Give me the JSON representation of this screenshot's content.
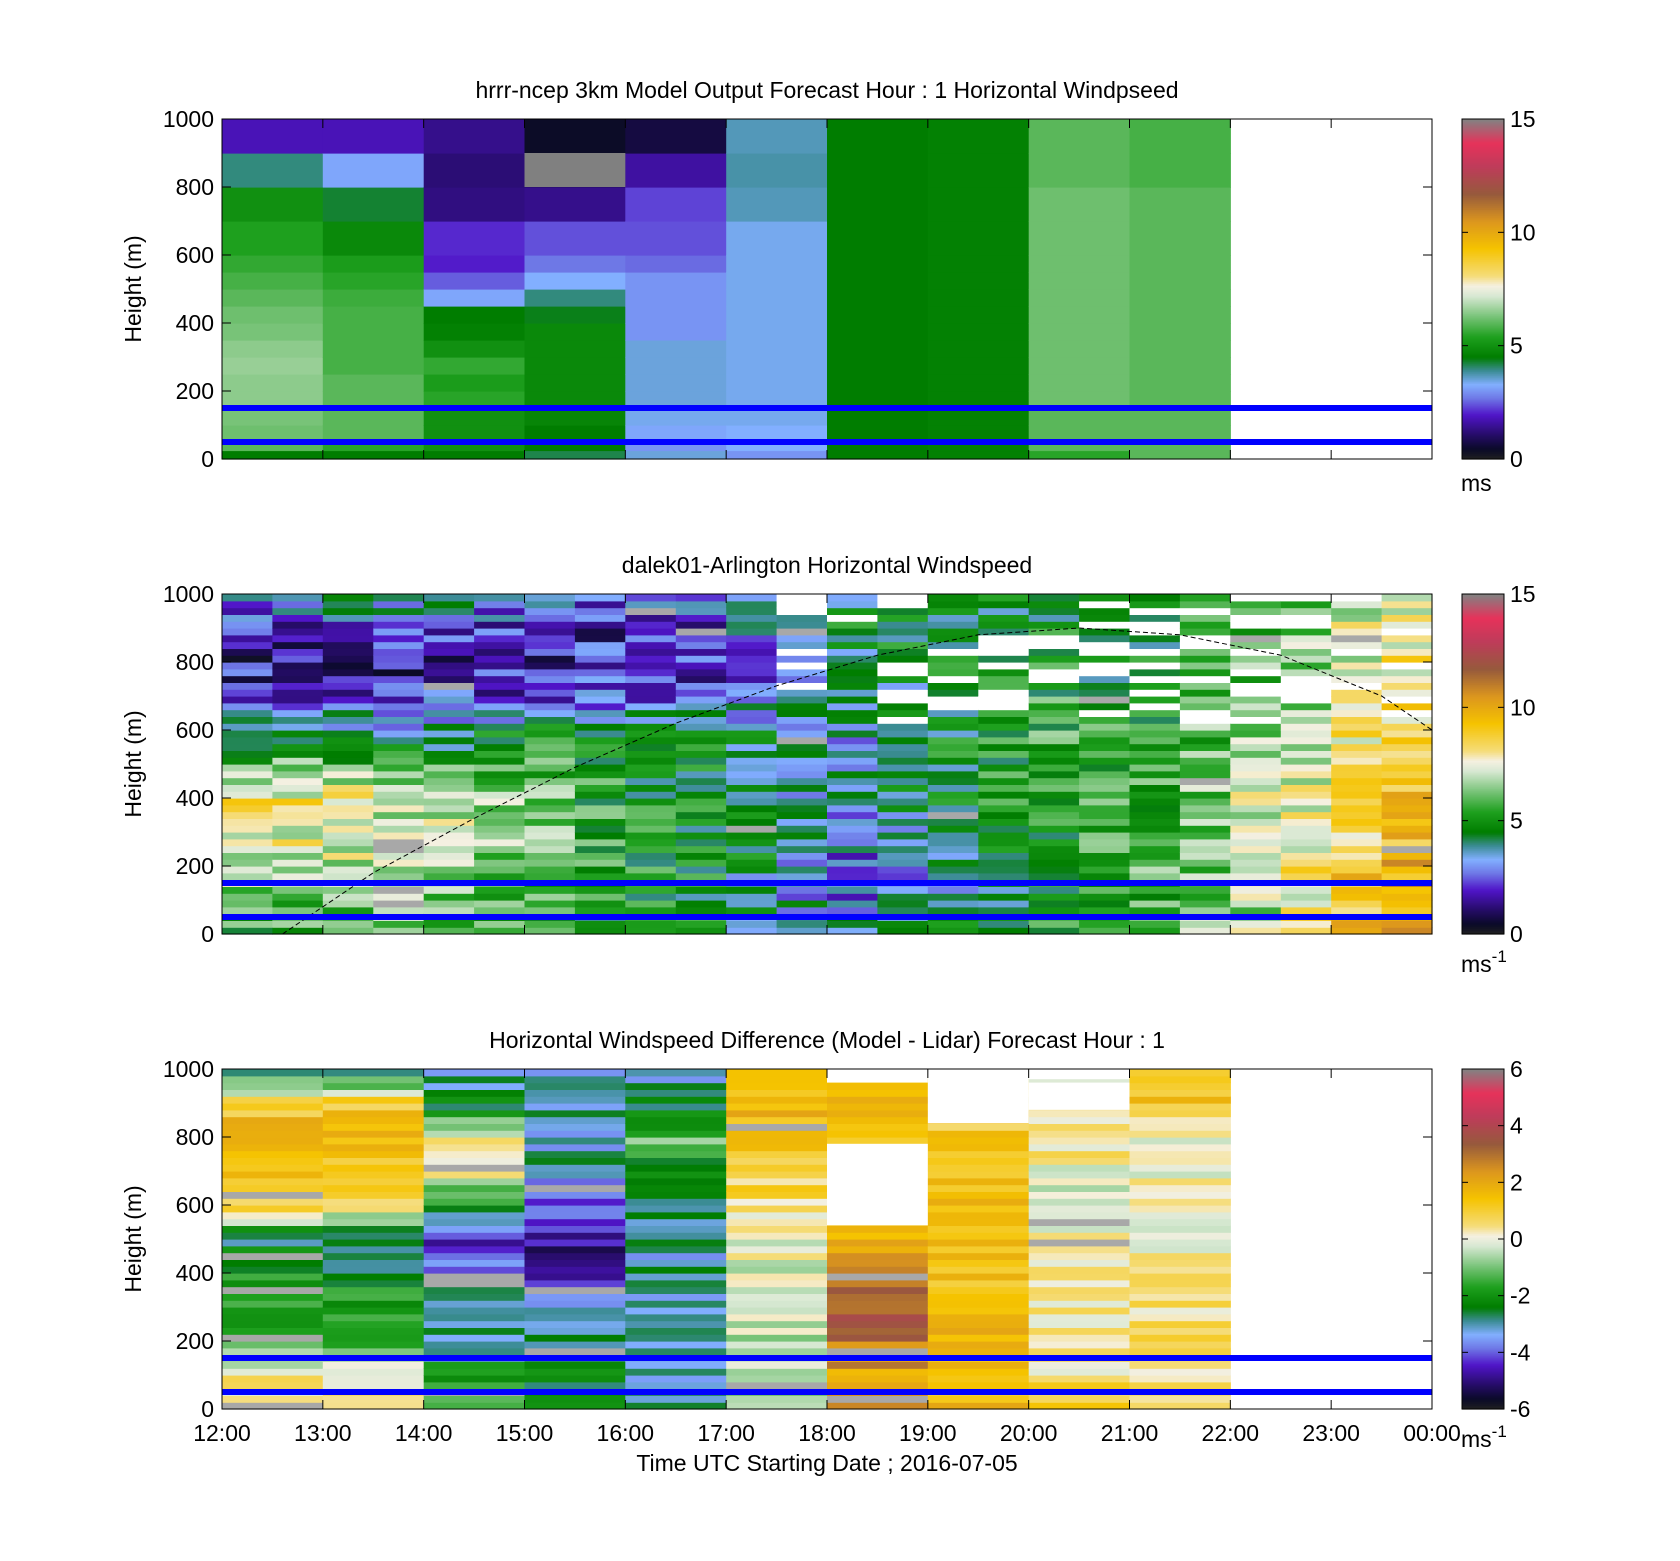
{
  "figure": {
    "xtick_labels": [
      "12:00",
      "13:00",
      "14:00",
      "15:00",
      "16:00",
      "17:00",
      "18:00",
      "19:00",
      "20:00",
      "21:00",
      "22:00",
      "23:00",
      "00:00"
    ],
    "xlabel": "Time UTC  Starting Date ; 2016-07-05"
  },
  "chart_data": [
    {
      "type": "heatmap",
      "title": "hrrr-ncep 3km Model Output   Forecast Hour : 1 Horizontal Windpseed",
      "ylabel": "Height (m)",
      "xlim_hours": [
        12,
        24
      ],
      "ylim": [
        0,
        1000
      ],
      "yticks": [
        0,
        200,
        400,
        600,
        800,
        1000
      ],
      "colorbar": {
        "ticks": [
          0,
          5,
          10,
          15
        ],
        "unit": "ms",
        "unit_sup": ""
      },
      "scale": {
        "min": 0,
        "max": 15
      },
      "reference_lines_m": [
        50,
        150
      ],
      "hour_columns": [
        12,
        13,
        14,
        15,
        16,
        17,
        18,
        19,
        20,
        21
      ],
      "height_bins_m": [
        0,
        25,
        50,
        100,
        150,
        200,
        250,
        300,
        350,
        400,
        450,
        500,
        550,
        600,
        700,
        800,
        900,
        1000
      ],
      "values_ms": [
        [
          4.5,
          4.5,
          4.5,
          4.2,
          3.5,
          3.0,
          4.5,
          4.6,
          5.5,
          6.0
        ],
        [
          6.0,
          5.5,
          5.0,
          4.5,
          3.0,
          3.3,
          4.5,
          4.6,
          6.0,
          6.0
        ],
        [
          6.2,
          6.0,
          5.0,
          4.5,
          3.2,
          3.3,
          4.5,
          4.6,
          6.0,
          6.0
        ],
        [
          6.3,
          6.0,
          5.0,
          4.7,
          3.4,
          3.4,
          4.5,
          4.6,
          6.0,
          6.0
        ],
        [
          6.5,
          6.0,
          5.5,
          4.8,
          3.5,
          3.4,
          4.5,
          4.6,
          6.2,
          6.0
        ],
        [
          6.5,
          6.0,
          5.3,
          4.8,
          3.5,
          3.4,
          4.5,
          4.6,
          6.2,
          6.0
        ],
        [
          6.6,
          5.8,
          5.6,
          4.8,
          3.5,
          3.4,
          4.5,
          4.6,
          6.2,
          6.0
        ],
        [
          6.5,
          5.8,
          5.0,
          4.8,
          3.5,
          3.4,
          4.5,
          4.6,
          6.2,
          6.0
        ],
        [
          6.3,
          5.8,
          4.6,
          4.8,
          3.0,
          3.4,
          4.5,
          4.6,
          6.2,
          6.0
        ],
        [
          6.2,
          5.8,
          4.5,
          4.4,
          3.0,
          3.4,
          4.5,
          4.6,
          6.2,
          6.0
        ],
        [
          6.0,
          5.7,
          3.2,
          4.0,
          3.0,
          3.4,
          4.5,
          4.6,
          6.2,
          6.0
        ],
        [
          5.8,
          5.5,
          2.5,
          3.3,
          3.0,
          3.4,
          4.5,
          4.6,
          6.2,
          6.0
        ],
        [
          5.6,
          5.3,
          2.0,
          2.7,
          2.6,
          3.4,
          4.5,
          4.6,
          6.2,
          6.0
        ],
        [
          5.4,
          4.8,
          2.1,
          2.4,
          2.4,
          3.4,
          4.5,
          4.6,
          6.2,
          6.0
        ],
        [
          5.0,
          4.3,
          1.3,
          1.4,
          2.3,
          3.7,
          4.5,
          4.6,
          6.2,
          6.0
        ],
        [
          4.0,
          3.2,
          1.2,
          1.1,
          1.6,
          3.8,
          4.5,
          4.6,
          6.0,
          5.8
        ],
        [
          1.8,
          1.8,
          1.4,
          0.4,
          0.7,
          3.7,
          4.5,
          4.6,
          6.0,
          5.8
        ]
      ],
      "missing_cells": [
        {
          "hour": 15,
          "height_m": 850
        }
      ]
    },
    {
      "type": "heatmap",
      "title": "dalek01-Arlington  Horizontal Windspeed",
      "ylabel": "Height (m)",
      "xlim_hours": [
        12,
        24
      ],
      "ylim": [
        0,
        1000
      ],
      "yticks": [
        0,
        200,
        400,
        600,
        800,
        1000
      ],
      "colorbar": {
        "ticks": [
          0,
          5,
          10,
          15
        ],
        "unit": "ms",
        "unit_sup": "-1"
      },
      "scale": {
        "min": 0,
        "max": 15
      },
      "reference_lines_m": [
        50,
        150
      ],
      "time_steps_per_hour": 2,
      "height_bin_m": 20,
      "profile_keypoints": {
        "hours": [
          12,
          13,
          14,
          15,
          16,
          17,
          18,
          19,
          20,
          21,
          22,
          23,
          24
        ],
        "heights_m": [
          0,
          100,
          200,
          400,
          600,
          700,
          800,
          900,
          1000
        ],
        "values_ms": [
          [
            5.5,
            5.6,
            5.8,
            5.6,
            5.0,
            4.6,
            4.5,
            4.5,
            5.0,
            5.5,
            6.5,
            8.5,
            10.5
          ],
          [
            6.0,
            6.2,
            6.2,
            5.8,
            5.0,
            4.6,
            3.0,
            3.0,
            4.5,
            5.5,
            6.3,
            8.5,
            10.5
          ],
          [
            7.5,
            7.2,
            6.8,
            6.2,
            5.2,
            4.8,
            2.8,
            3.0,
            4.5,
            5.6,
            6.3,
            8.5,
            10.0
          ],
          [
            8.5,
            7.8,
            7.0,
            6.3,
            5.0,
            4.8,
            3.0,
            4.5,
            5.0,
            5.5,
            6.5,
            8.0,
            9.8
          ],
          [
            4.0,
            4.5,
            3.5,
            5.0,
            5.0,
            4.5,
            3.2,
            4.5,
            5.5,
            5.3,
            6.2,
            7.5,
            9.0
          ],
          [
            2.5,
            2.0,
            2.2,
            2.0,
            2.5,
            2.5,
            3.5,
            4.5,
            5.5,
            4.8,
            6.0,
            7.0,
            8.5
          ],
          [
            1.5,
            1.2,
            1.5,
            1.8,
            2.0,
            2.0,
            3.5,
            4.5,
            5.0,
            4.5,
            5.5,
            7.0,
            8.5
          ],
          [
            1.2,
            2.5,
            2.5,
            2.0,
            2.0,
            2.2,
            5.0,
            4.8,
            4.8,
            4.6,
            5.5,
            7.0,
            8.0
          ],
          [
            4.0,
            4.0,
            4.0,
            3.5,
            2.5,
            3.0,
            4.5,
            4.5,
            4.5,
            4.5,
            5.5,
            6.5,
            7.5
          ]
        ]
      },
      "dashed_curve_keypoints": {
        "hours": [
          12.6,
          13.5,
          14.5,
          15.5,
          16.5,
          17.5,
          18.5,
          19.5,
          20.5,
          21.5,
          22.5,
          23.5,
          24
        ],
        "heights_m": [
          0,
          180,
          340,
          490,
          620,
          730,
          820,
          880,
          900,
          880,
          820,
          700,
          600
        ]
      }
    },
    {
      "type": "heatmap",
      "title": "Horizontal Windspeed Difference (Model - Lidar) Forecast Hour : 1",
      "ylabel": "Height (m)",
      "xlim_hours": [
        12,
        24
      ],
      "ylim": [
        0,
        1000
      ],
      "yticks": [
        0,
        200,
        400,
        600,
        800,
        1000
      ],
      "colorbar": {
        "ticks": [
          -6,
          -4,
          -2,
          0,
          2,
          4,
          6
        ],
        "unit": "ms",
        "unit_sup": "-1"
      },
      "scale": {
        "min": -6,
        "max": 6
      },
      "reference_lines_m": [
        50,
        150
      ],
      "hour_columns": [
        12,
        13,
        14,
        15,
        16,
        17,
        18,
        19,
        20,
        21
      ],
      "height_bin_m": 20,
      "difference_keypoints": {
        "heights_m": [
          0,
          100,
          200,
          300,
          400,
          500,
          600,
          700,
          800,
          900,
          1000
        ],
        "values_ms": [
          [
            0.5,
            0.8,
            -1.5,
            -2.5,
            -3.0,
            -0.5,
            2.0,
            1.5,
            1.2,
            1.0
          ],
          [
            0.3,
            0.5,
            -2.0,
            -2.5,
            -3.0,
            -0.4,
            2.0,
            1.5,
            0.4,
            0.7
          ],
          [
            -1.5,
            -1.3,
            -2.8,
            -2.8,
            -3.0,
            -0.4,
            3.0,
            1.6,
            0.4,
            0.6
          ],
          [
            -1.8,
            -1.6,
            -3.0,
            -3.5,
            -3.0,
            -0.3,
            3.5,
            1.6,
            0.3,
            0.4
          ],
          [
            -2.0,
            -2.3,
            -3.5,
            -4.5,
            -3.0,
            -0.2,
            3.0,
            1.5,
            0.2,
            0.4
          ],
          [
            -2.5,
            -2.8,
            -4.5,
            -4.8,
            -3.0,
            0.0,
            1.5,
            1.5,
            -0.1,
            0.3
          ],
          [
            1.0,
            0.2,
            -2.0,
            -4.0,
            -2.8,
            0.4,
            1.5,
            1.5,
            -0.2,
            0.3
          ],
          [
            1.5,
            1.2,
            0.5,
            -3.0,
            -2.5,
            1.0,
            1.5,
            1.4,
            0.2,
            0.2
          ],
          [
            2.0,
            1.8,
            0.2,
            -3.0,
            -1.0,
            2.0,
            1.5,
            1.2,
            0.4,
            0.2
          ],
          [
            1.0,
            1.2,
            -2.5,
            -3.0,
            -2.5,
            1.5,
            1.5,
            1.2,
            0.3,
            1.5
          ],
          [
            -2.5,
            -2.8,
            -3.0,
            -3.5,
            -3.2,
            1.2,
            1.2,
            1.2,
            0.3,
            1.5
          ]
        ]
      },
      "missing_ranges": [
        {
          "hour": 18,
          "from_m": 960,
          "to_m": 1000
        },
        {
          "hour": 18,
          "from_m": 540,
          "to_m": 780
        },
        {
          "hour": 19,
          "from_m": 840,
          "to_m": 1000
        },
        {
          "hour": 20,
          "from_m": 970,
          "to_m": 1000
        },
        {
          "hour": 20,
          "from_m": 880,
          "to_m": 960
        }
      ]
    }
  ]
}
